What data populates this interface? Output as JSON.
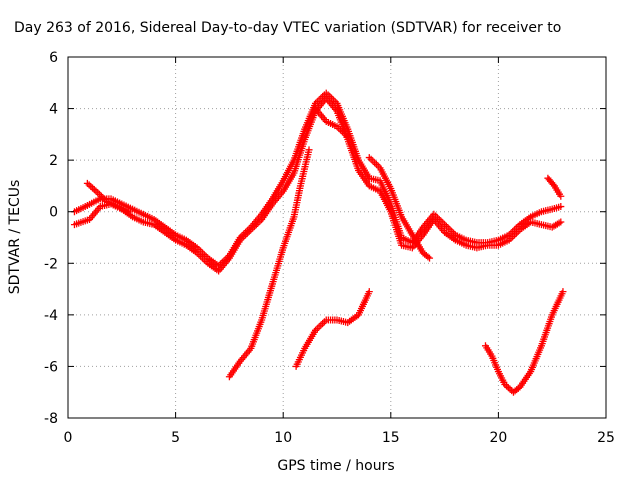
{
  "chart_data": {
    "type": "scatter",
    "title": "Day 263 of 2016, Sidereal Day-to-day VTEC variation (SDTVAR) for receiver to",
    "xlabel": "GPS time / hours",
    "ylabel": "SDTVAR / TECUs",
    "xlim": [
      0,
      25
    ],
    "ylim": [
      -8,
      6
    ],
    "xticks": [
      0,
      5,
      10,
      15,
      20,
      25
    ],
    "yticks": [
      -8,
      -6,
      -4,
      -2,
      0,
      2,
      4,
      6
    ],
    "grid": true,
    "marker": "plus",
    "color": "#ff0000",
    "series": [
      {
        "points": [
          [
            0.3,
            0.0
          ],
          [
            0.8,
            0.2
          ],
          [
            1.5,
            0.5
          ],
          [
            2.0,
            0.5
          ],
          [
            2.5,
            0.3
          ],
          [
            3.0,
            0.1
          ],
          [
            3.5,
            -0.1
          ],
          [
            4.0,
            -0.3
          ],
          [
            4.5,
            -0.6
          ],
          [
            5.0,
            -0.9
          ],
          [
            5.5,
            -1.1
          ],
          [
            6.0,
            -1.4
          ],
          [
            6.5,
            -1.8
          ],
          [
            7.0,
            -2.1
          ],
          [
            7.5,
            -1.7
          ],
          [
            8.0,
            -1.0
          ],
          [
            8.5,
            -0.6
          ],
          [
            9.0,
            -0.1
          ],
          [
            9.5,
            0.5
          ],
          [
            10.0,
            1.2
          ],
          [
            10.5,
            2.0
          ],
          [
            11.0,
            3.2
          ],
          [
            11.5,
            4.2
          ],
          [
            12.0,
            4.6
          ],
          [
            12.5,
            4.2
          ],
          [
            13.0,
            3.2
          ],
          [
            13.5,
            2.0
          ],
          [
            14.0,
            1.3
          ],
          [
            14.5,
            1.2
          ],
          [
            15.0,
            0.3
          ],
          [
            15.5,
            -1.0
          ],
          [
            16.0,
            -1.2
          ],
          [
            16.5,
            -0.6
          ],
          [
            17.0,
            -0.1
          ],
          [
            17.5,
            -0.5
          ],
          [
            18.0,
            -0.9
          ],
          [
            18.5,
            -1.1
          ],
          [
            19.0,
            -1.2
          ],
          [
            19.5,
            -1.2
          ],
          [
            20.0,
            -1.1
          ],
          [
            20.5,
            -0.9
          ],
          [
            21.0,
            -0.5
          ],
          [
            21.5,
            -0.2
          ],
          [
            22.0,
            0.0
          ],
          [
            22.5,
            0.1
          ],
          [
            22.9,
            0.2
          ]
        ]
      },
      {
        "points": [
          [
            0.3,
            -0.5
          ],
          [
            1.0,
            -0.3
          ],
          [
            1.5,
            0.2
          ],
          [
            2.0,
            0.3
          ],
          [
            2.5,
            0.1
          ],
          [
            3.0,
            -0.2
          ],
          [
            3.5,
            -0.4
          ],
          [
            4.0,
            -0.5
          ],
          [
            4.5,
            -0.8
          ],
          [
            5.0,
            -1.1
          ],
          [
            5.5,
            -1.3
          ],
          [
            6.0,
            -1.6
          ],
          [
            6.5,
            -2.0
          ],
          [
            7.0,
            -2.3
          ],
          [
            7.5,
            -1.8
          ],
          [
            8.0,
            -1.1
          ],
          [
            8.5,
            -0.7
          ],
          [
            9.0,
            -0.3
          ],
          [
            9.5,
            0.3
          ],
          [
            10.0,
            0.8
          ],
          [
            10.5,
            1.5
          ],
          [
            11.0,
            2.8
          ],
          [
            11.5,
            3.9
          ],
          [
            12.0,
            4.4
          ],
          [
            12.5,
            3.9
          ],
          [
            13.0,
            2.8
          ],
          [
            13.5,
            1.6
          ],
          [
            14.0,
            1.0
          ],
          [
            14.5,
            0.8
          ],
          [
            15.0,
            0.0
          ],
          [
            15.5,
            -1.3
          ],
          [
            16.0,
            -1.4
          ],
          [
            16.5,
            -0.9
          ],
          [
            17.0,
            -0.3
          ],
          [
            17.5,
            -0.8
          ],
          [
            18.0,
            -1.1
          ],
          [
            18.5,
            -1.3
          ],
          [
            19.0,
            -1.4
          ],
          [
            19.5,
            -1.3
          ],
          [
            20.0,
            -1.3
          ],
          [
            20.5,
            -1.1
          ],
          [
            21.0,
            -0.7
          ],
          [
            21.5,
            -0.4
          ],
          [
            22.0,
            -0.5
          ],
          [
            22.5,
            -0.6
          ],
          [
            22.9,
            -0.4
          ]
        ]
      },
      {
        "points": [
          [
            0.9,
            1.1
          ],
          [
            1.3,
            0.8
          ],
          [
            1.8,
            0.4
          ],
          [
            2.3,
            0.2
          ],
          [
            2.8,
            0.0
          ]
        ]
      },
      {
        "points": [
          [
            11.5,
            4.0
          ],
          [
            12.0,
            3.5
          ],
          [
            12.5,
            3.3
          ],
          [
            13.0,
            2.9
          ]
        ]
      },
      {
        "points": [
          [
            14.0,
            2.1
          ],
          [
            14.5,
            1.7
          ],
          [
            15.0,
            0.9
          ],
          [
            15.5,
            -0.2
          ],
          [
            16.0,
            -0.9
          ],
          [
            16.5,
            -1.6
          ],
          [
            16.8,
            -1.8
          ]
        ]
      },
      {
        "points": [
          [
            22.3,
            1.3
          ],
          [
            22.6,
            1.0
          ],
          [
            22.9,
            0.6
          ]
        ]
      },
      {
        "points": [
          [
            7.5,
            -6.4
          ],
          [
            8.0,
            -5.8
          ],
          [
            8.5,
            -5.3
          ],
          [
            9.0,
            -4.2
          ],
          [
            9.5,
            -2.8
          ],
          [
            10.0,
            -1.4
          ],
          [
            10.5,
            -0.2
          ],
          [
            10.8,
            1.0
          ],
          [
            11.2,
            2.4
          ]
        ]
      },
      {
        "points": [
          [
            10.6,
            -6.0
          ],
          [
            11.0,
            -5.3
          ],
          [
            11.5,
            -4.6
          ],
          [
            12.0,
            -4.2
          ],
          [
            12.5,
            -4.2
          ],
          [
            13.0,
            -4.3
          ],
          [
            13.5,
            -4.0
          ],
          [
            14.0,
            -3.1
          ]
        ]
      },
      {
        "points": [
          [
            19.4,
            -5.2
          ],
          [
            19.7,
            -5.6
          ],
          [
            20.0,
            -6.2
          ],
          [
            20.3,
            -6.7
          ],
          [
            20.7,
            -7.0
          ],
          [
            21.0,
            -6.8
          ],
          [
            21.5,
            -6.2
          ],
          [
            22.0,
            -5.2
          ],
          [
            22.5,
            -4.0
          ],
          [
            23.0,
            -3.1
          ]
        ]
      }
    ]
  }
}
